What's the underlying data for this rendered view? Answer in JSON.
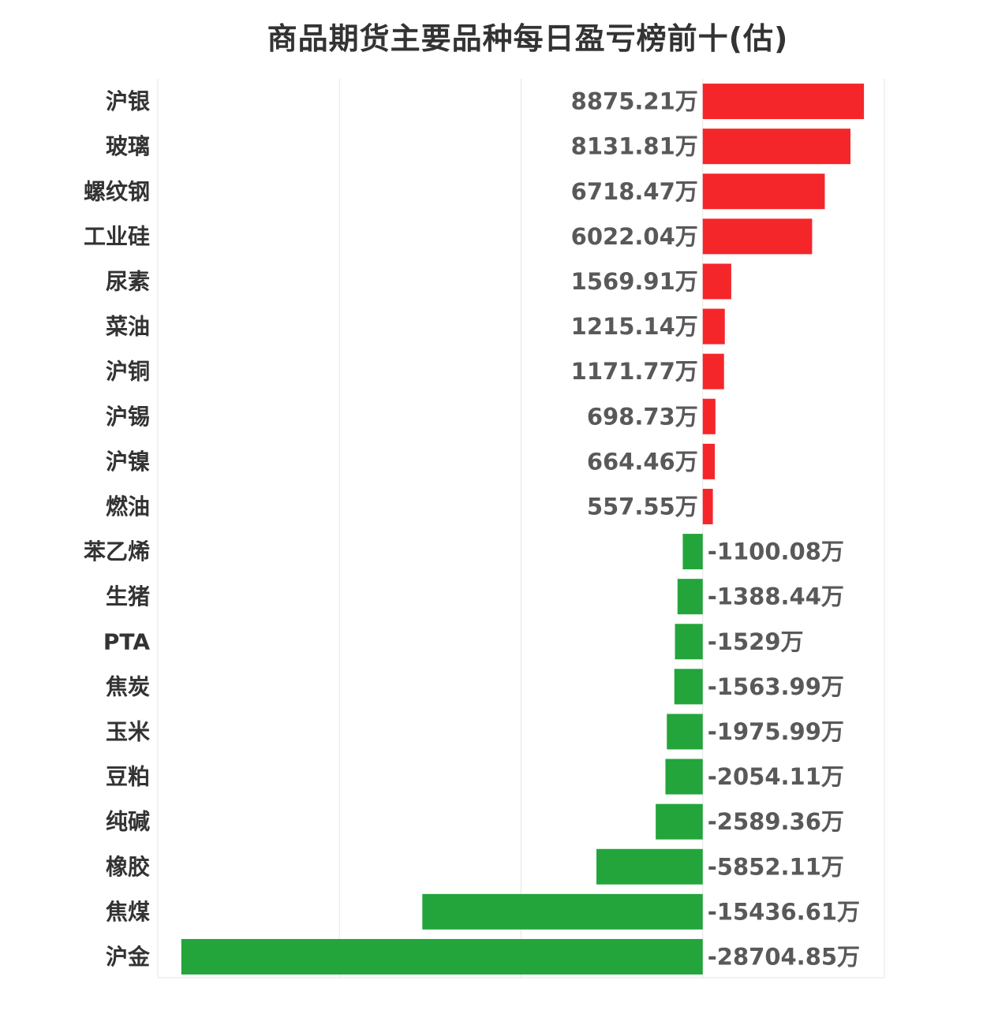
{
  "chart_data": {
    "type": "bar",
    "orientation": "horizontal",
    "title": "商品期货主要品种每日盈亏榜前十(估)",
    "unit": "万",
    "categories": [
      "沪银",
      "玻璃",
      "螺纹钢",
      "工业硅",
      "尿素",
      "菜油",
      "沪铜",
      "沪锡",
      "沪镍",
      "燃油",
      "苯乙烯",
      "生猪",
      "PTA",
      "焦炭",
      "玉米",
      "豆粕",
      "纯碱",
      "橡胶",
      "焦煤",
      "沪金"
    ],
    "values": [
      8875.21,
      8131.81,
      6718.47,
      6022.04,
      1569.91,
      1215.14,
      1171.77,
      698.73,
      664.46,
      557.55,
      -1100.08,
      -1388.44,
      -1529,
      -1563.99,
      -1975.99,
      -2054.11,
      -2589.36,
      -5852.11,
      -15436.61,
      -28704.85
    ],
    "value_labels": [
      "8875.21万",
      "8131.81万",
      "6718.47万",
      "6022.04万",
      "1569.91万",
      "1215.14万",
      "1171.77万",
      "698.73万",
      "664.46万",
      "557.55万",
      "-1100.08万",
      "-1388.44万",
      "-1529万",
      "-1563.99万",
      "-1975.99万",
      "-2054.11万",
      "-2589.36万",
      "-5852.11万",
      "-15436.61万",
      "-28704.85万"
    ],
    "xlim": [
      -30000,
      10000
    ],
    "grid": true,
    "colors": {
      "positive": "#f5262a",
      "negative": "#23a53b",
      "grid": "#e6e6e6",
      "category_text": "#333333",
      "value_text": "#595959"
    }
  }
}
